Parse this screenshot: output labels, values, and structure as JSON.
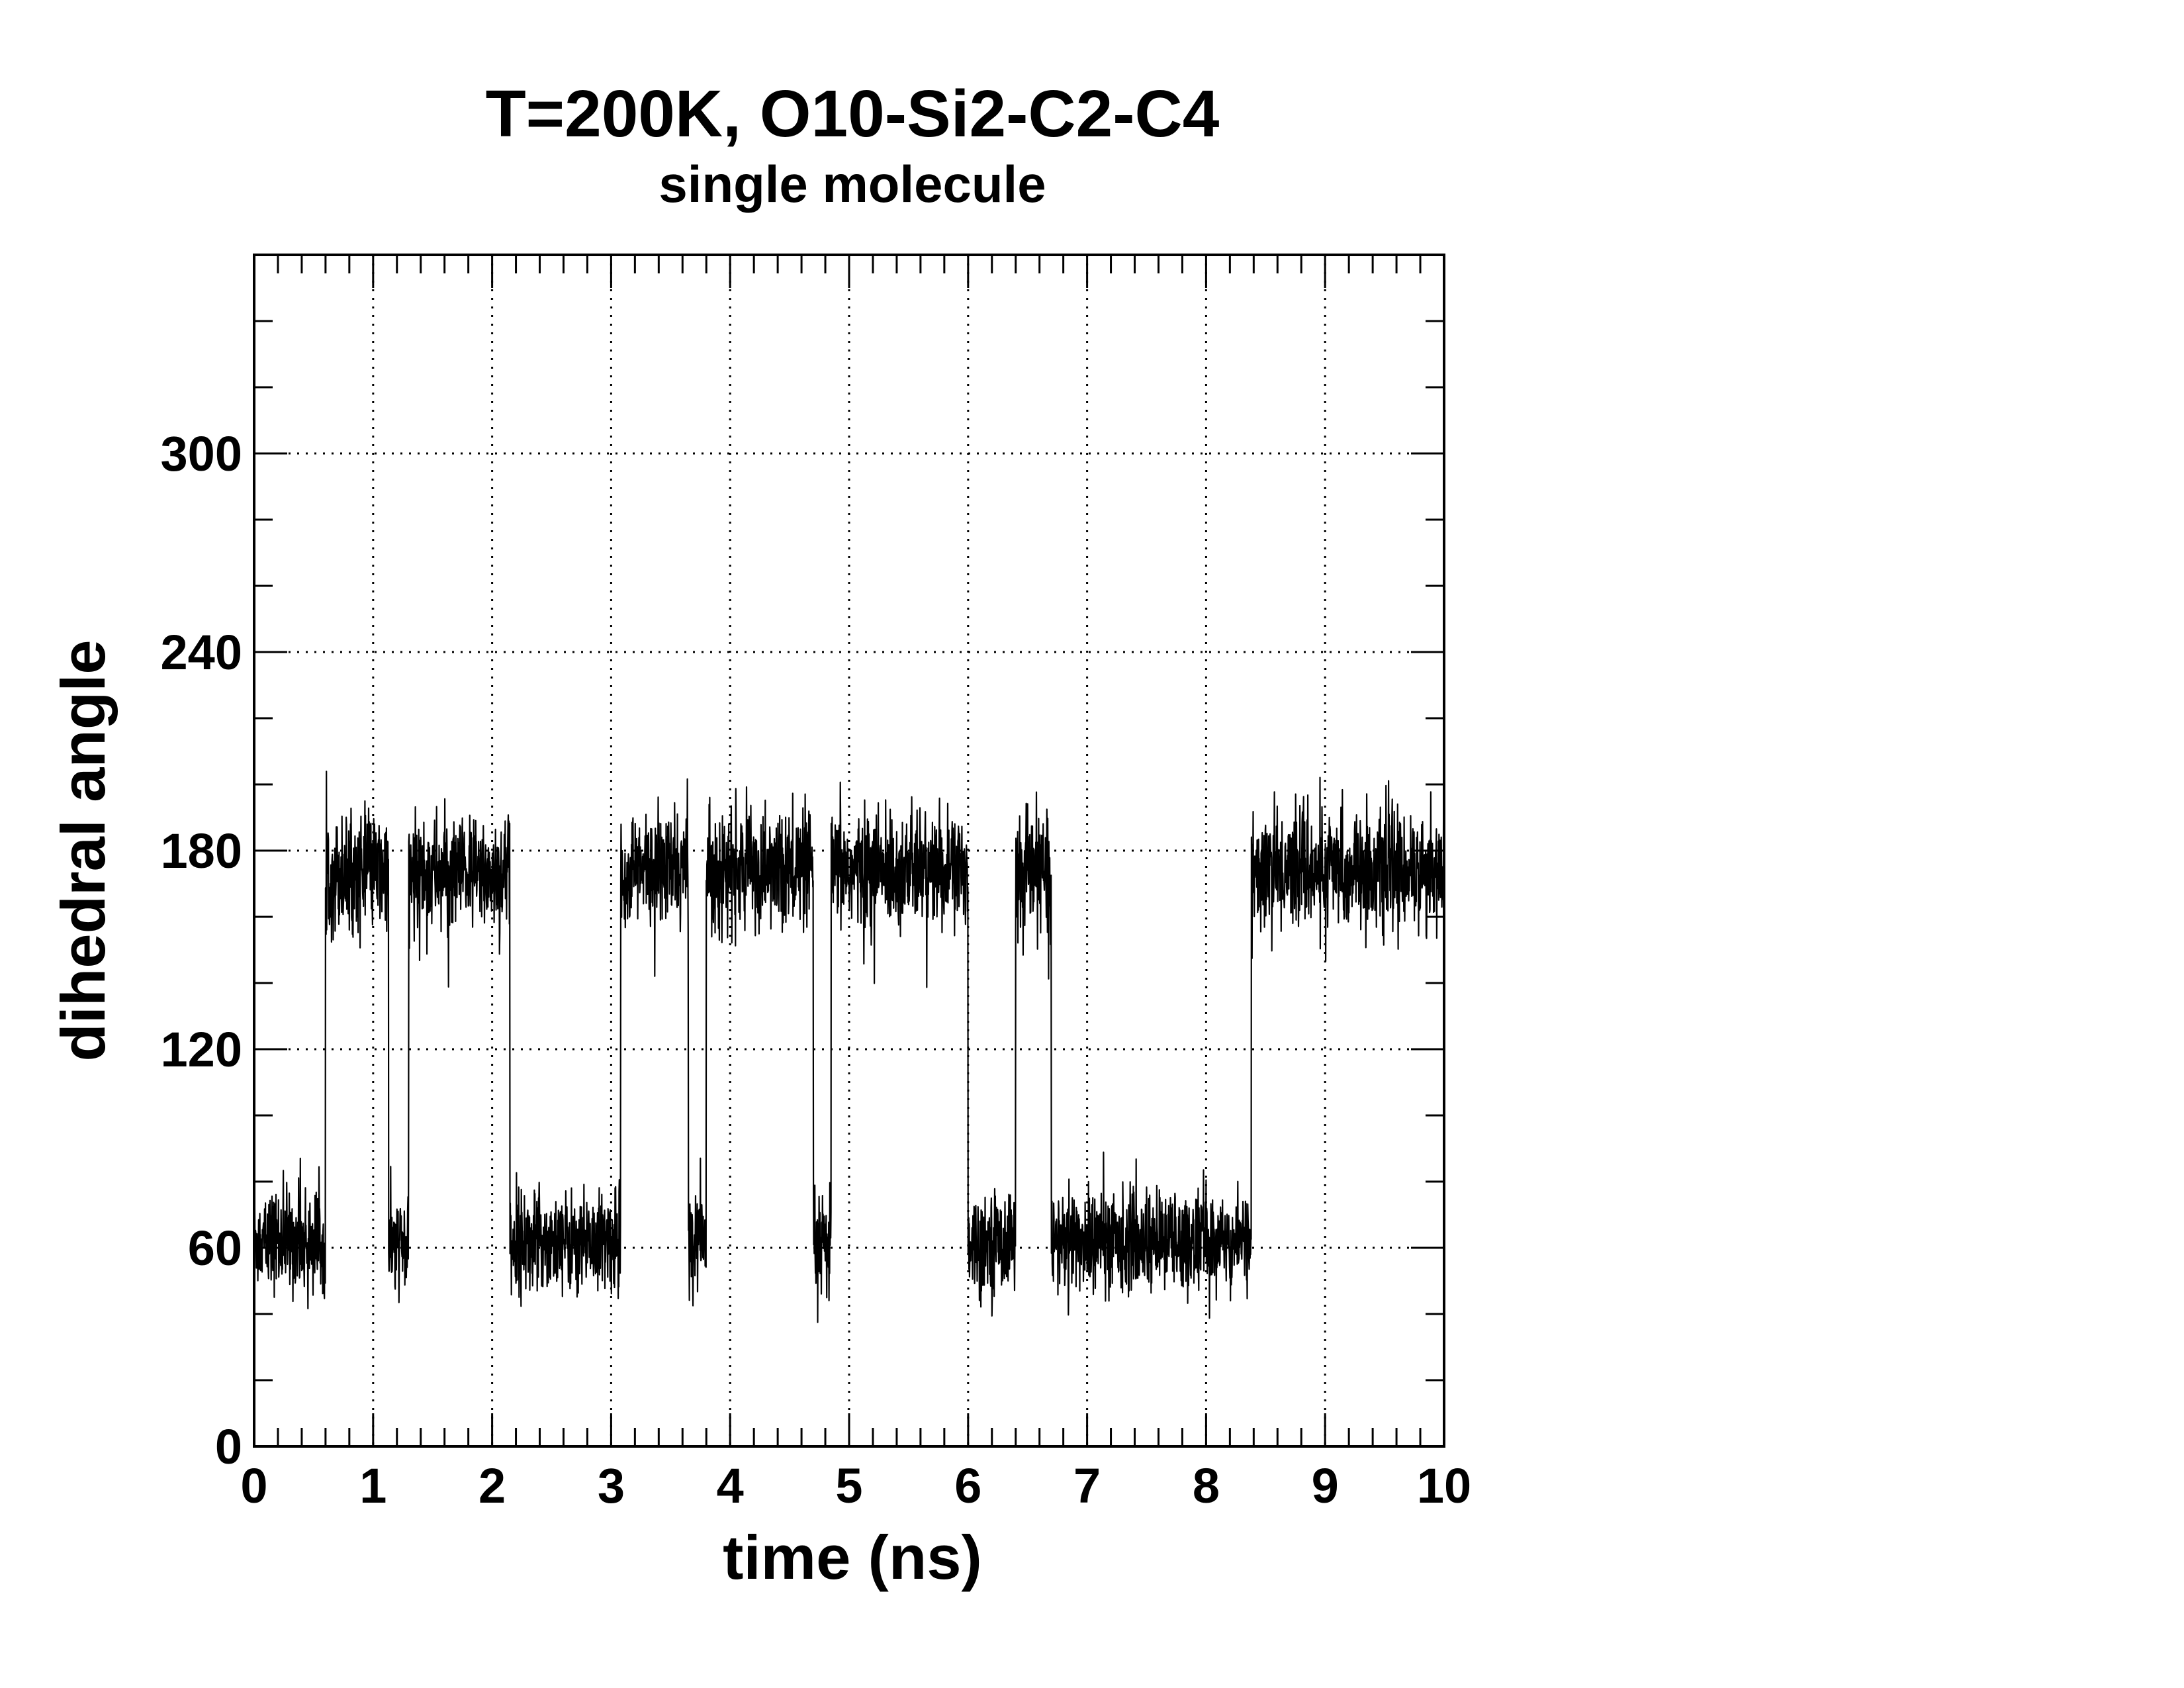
{
  "chart_data": {
    "type": "line",
    "title": "T=200K, O10-Si2-C2-C4",
    "subtitle": "single molecule",
    "xlabel": "time (ns)",
    "ylabel": "dihedral angle",
    "xlim": [
      0,
      10
    ],
    "ylim": [
      0,
      360
    ],
    "x_ticks": [
      0,
      1,
      2,
      3,
      4,
      5,
      6,
      7,
      8,
      9,
      10
    ],
    "y_ticks": [
      0,
      60,
      120,
      180,
      240,
      300
    ],
    "x_tick_labels": [
      "0",
      "1",
      "2",
      "3",
      "4",
      "5",
      "6",
      "7",
      "8",
      "9",
      "10"
    ],
    "y_tick_labels": [
      "0",
      "60",
      "120",
      "180",
      "240",
      "300"
    ],
    "grid": true,
    "legend": "none",
    "line_color": "#000000",
    "series": [
      {
        "segments": [
          {
            "t_start": 0.0,
            "t_end": 0.6,
            "mean": 62
          },
          {
            "t_start": 0.6,
            "t_end": 1.13,
            "mean": 173
          },
          {
            "t_start": 1.13,
            "t_end": 1.3,
            "mean": 60
          },
          {
            "t_start": 1.3,
            "t_end": 2.15,
            "mean": 173
          },
          {
            "t_start": 2.15,
            "t_end": 3.08,
            "mean": 62
          },
          {
            "t_start": 3.08,
            "t_end": 3.65,
            "mean": 174
          },
          {
            "t_start": 3.65,
            "t_end": 3.8,
            "mean": 62
          },
          {
            "t_start": 3.8,
            "t_end": 4.7,
            "mean": 174
          },
          {
            "t_start": 4.7,
            "t_end": 4.85,
            "mean": 60
          },
          {
            "t_start": 4.85,
            "t_end": 6.0,
            "mean": 174
          },
          {
            "t_start": 6.0,
            "t_end": 6.4,
            "mean": 62
          },
          {
            "t_start": 6.4,
            "t_end": 6.7,
            "mean": 173
          },
          {
            "t_start": 6.7,
            "t_end": 8.38,
            "mean": 62
          },
          {
            "t_start": 8.38,
            "t_end": 10.0,
            "mean": 174
          }
        ]
      }
    ]
  }
}
